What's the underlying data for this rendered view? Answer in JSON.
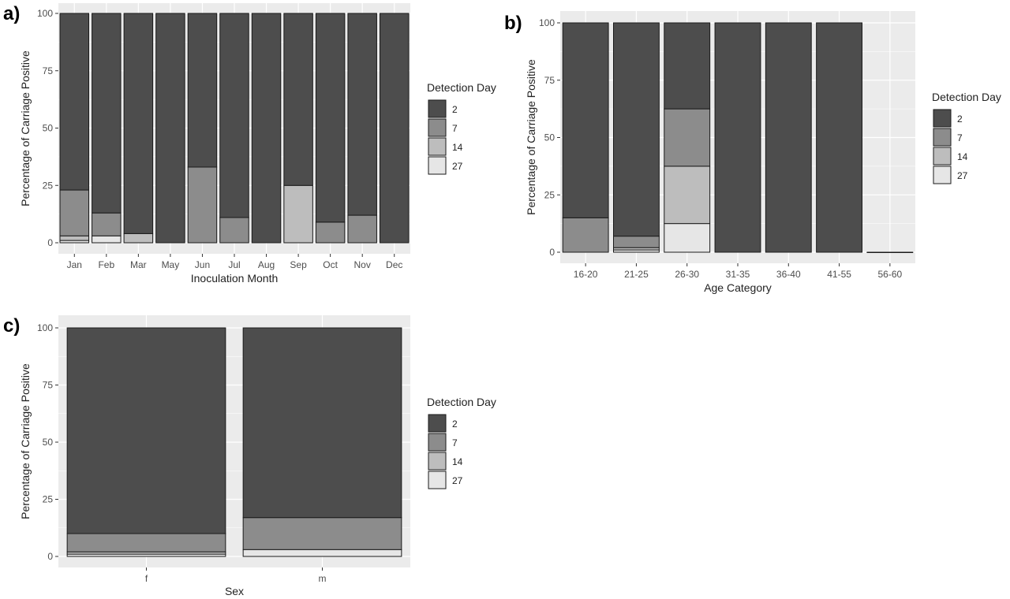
{
  "chart_data": [
    {
      "id": "a",
      "panel_label": "a)",
      "type": "bar",
      "stacked": true,
      "title": "",
      "xlabel": "Inoculation Month",
      "ylabel": "Percentage of Carriage Positive",
      "ylim": [
        0,
        100
      ],
      "yticks": [
        0,
        25,
        50,
        75,
        100
      ],
      "grid": true,
      "legend_title": "Detection Day",
      "legend_position": "right",
      "categories": [
        "Jan",
        "Feb",
        "Mar",
        "May",
        "Jun",
        "Jul",
        "Aug",
        "Sep",
        "Oct",
        "Nov",
        "Dec"
      ],
      "series": [
        {
          "name": "27",
          "color": "#e6e6e6",
          "values": [
            1,
            3,
            0,
            0,
            0,
            0,
            0,
            0,
            0,
            0,
            0
          ]
        },
        {
          "name": "14",
          "color": "#bdbdbd",
          "values": [
            2,
            0,
            4,
            0,
            0,
            0,
            0,
            25,
            0,
            0,
            0
          ]
        },
        {
          "name": "7",
          "color": "#8c8c8c",
          "values": [
            20,
            10,
            0,
            0,
            33,
            11,
            0,
            0,
            9,
            12,
            0
          ]
        },
        {
          "name": "2",
          "color": "#4d4d4d",
          "values": [
            77,
            87,
            96,
            100,
            67,
            89,
            100,
            75,
            91,
            88,
            100
          ]
        }
      ]
    },
    {
      "id": "b",
      "panel_label": "b)",
      "type": "bar",
      "stacked": true,
      "title": "",
      "xlabel": "Age Category",
      "ylabel": "Percentage of Carriage Positive",
      "ylim": [
        0,
        100
      ],
      "yticks": [
        0,
        25,
        50,
        75,
        100
      ],
      "grid": true,
      "legend_title": "Detection Day",
      "legend_position": "right",
      "categories": [
        "16-20",
        "21-25",
        "26-30",
        "31-35",
        "36-40",
        "41-55",
        "56-60"
      ],
      "series": [
        {
          "name": "27",
          "color": "#e6e6e6",
          "values": [
            0,
            1,
            12.5,
            0,
            0,
            0,
            0
          ]
        },
        {
          "name": "14",
          "color": "#bdbdbd",
          "values": [
            0,
            1,
            25,
            0,
            0,
            0,
            0
          ]
        },
        {
          "name": "7",
          "color": "#8c8c8c",
          "values": [
            15,
            5,
            25,
            0,
            0,
            0,
            0
          ]
        },
        {
          "name": "2",
          "color": "#4d4d4d",
          "values": [
            85,
            93,
            37.5,
            100,
            100,
            100,
            0
          ]
        }
      ]
    },
    {
      "id": "c",
      "panel_label": "c)",
      "type": "bar",
      "stacked": true,
      "title": "",
      "xlabel": "Sex",
      "ylabel": "Percentage of Carriage Positive",
      "ylim": [
        0,
        100
      ],
      "yticks": [
        0,
        25,
        50,
        75,
        100
      ],
      "grid": true,
      "legend_title": "Detection Day",
      "legend_position": "right",
      "categories": [
        "f",
        "m"
      ],
      "series": [
        {
          "name": "27",
          "color": "#e6e6e6",
          "values": [
            1,
            3
          ]
        },
        {
          "name": "14",
          "color": "#bdbdbd",
          "values": [
            1,
            0
          ]
        },
        {
          "name": "7",
          "color": "#8c8c8c",
          "values": [
            8,
            14
          ]
        },
        {
          "name": "2",
          "color": "#4d4d4d",
          "values": [
            90,
            83
          ]
        }
      ]
    }
  ],
  "legend_order": [
    "2",
    "7",
    "14",
    "27"
  ],
  "colors": {
    "panel_bg": "#ebebeb",
    "grid": "#ffffff",
    "bar_outline": "#1a1a1a",
    "text": "#4d4d4d"
  }
}
